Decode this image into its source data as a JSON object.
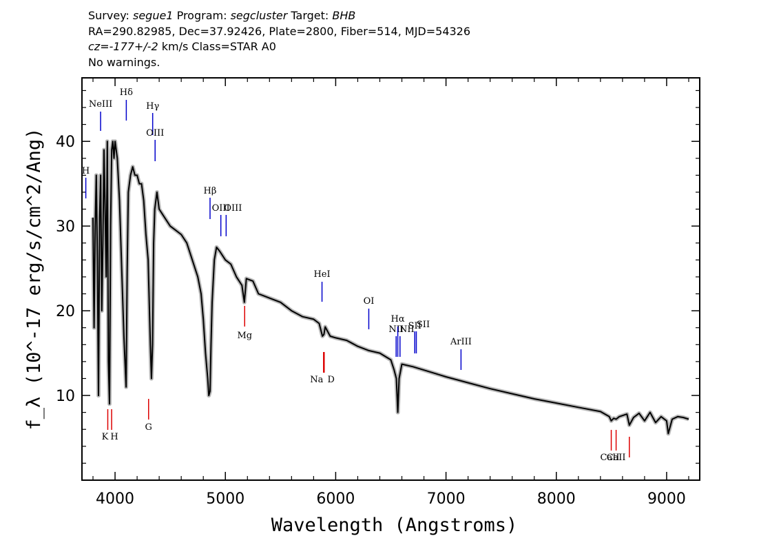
{
  "header": {
    "survey_label": "Survey:",
    "survey": "segue1",
    "program_label": "Program:",
    "program": "segcluster",
    "target_label": "Target:",
    "target": "BHB",
    "line2": "RA=290.82985, Dec=37.92426, Plate=2800, Fiber=514, MJD=54326",
    "cz_label": "cz=",
    "cz_value": "-177+/-2",
    "cz_rest": "km/s Class=STAR A0",
    "warnings": "No warnings."
  },
  "chart_data": {
    "type": "line",
    "xlabel": "Wavelength (Angstroms)",
    "ylabel": "f_λ (10^-17 erg/s/cm^2/Ang)",
    "xlim": [
      3700,
      9300
    ],
    "ylim": [
      0,
      47.5
    ],
    "xticks": [
      4000,
      5000,
      6000,
      7000,
      8000,
      9000
    ],
    "yticks": [
      10,
      20,
      30,
      40
    ],
    "series": [
      {
        "color": "#000000",
        "x": [
          3800,
          3810,
          3820,
          3830,
          3840,
          3850,
          3860,
          3870,
          3880,
          3890,
          3900,
          3910,
          3920,
          3930,
          3940,
          3950,
          3960,
          3970,
          3980,
          3990,
          4000,
          4020,
          4040,
          4060,
          4080,
          4090,
          4100,
          4110,
          4120,
          4140,
          4160,
          4180,
          4200,
          4220,
          4240,
          4260,
          4280,
          4300,
          4320,
          4330,
          4340,
          4350,
          4360,
          4370,
          4380,
          4400,
          4450,
          4500,
          4550,
          4600,
          4650,
          4700,
          4750,
          4780,
          4800,
          4820,
          4840,
          4850,
          4861,
          4870,
          4880,
          4900,
          4920,
          4950,
          5000,
          5050,
          5100,
          5150,
          5172,
          5190,
          5250,
          5300,
          5400,
          5500,
          5600,
          5700,
          5800,
          5850,
          5880,
          5893,
          5905,
          5950,
          6000,
          6100,
          6200,
          6300,
          6400,
          6500,
          6530,
          6550,
          6563,
          6575,
          6600,
          6700,
          6800,
          6900,
          7000,
          7200,
          7400,
          7600,
          7800,
          8000,
          8200,
          8400,
          8480,
          8498,
          8520,
          8542,
          8570,
          8640,
          8662,
          8700,
          8750,
          8800,
          8850,
          8900,
          8950,
          9000,
          9015,
          9050,
          9100,
          9150,
          9200
        ],
        "values": [
          31,
          18,
          30,
          36,
          26,
          10,
          31,
          36,
          20,
          28,
          39,
          32,
          24,
          40,
          14,
          9,
          30,
          39,
          40,
          38,
          40,
          38,
          33,
          25,
          17,
          14,
          11,
          25,
          34,
          36,
          37,
          36,
          36,
          35,
          35,
          33,
          29,
          26,
          16,
          12,
          16,
          28,
          32,
          33,
          34,
          32,
          31,
          30,
          29.5,
          29,
          28,
          26,
          24,
          22,
          19,
          15,
          12,
          10,
          10.5,
          16,
          21,
          26,
          27.5,
          27,
          26,
          25.5,
          24,
          23,
          21,
          23.8,
          23.5,
          22,
          21.5,
          21,
          20,
          19.3,
          19,
          18.5,
          17,
          17.2,
          18.1,
          17,
          16.8,
          16.5,
          15.8,
          15.3,
          15,
          14.2,
          13,
          12,
          8,
          12,
          13.7,
          13.4,
          13,
          12.6,
          12.2,
          11.5,
          10.8,
          10.2,
          9.6,
          9.1,
          8.6,
          8.1,
          7.5,
          7.0,
          7.3,
          7.2,
          7.5,
          7.8,
          6.5,
          7.4,
          7.9,
          7.0,
          8.0,
          6.8,
          7.5,
          7.0,
          5.5,
          7.2,
          7.5,
          7.4,
          7.2
        ]
      }
    ],
    "emission_lines": [
      {
        "label": "H",
        "wavelength": 3735
      },
      {
        "label": "NeIII",
        "wavelength": 3869
      },
      {
        "label": "Hδ",
        "wavelength": 4102
      },
      {
        "label": "Hγ",
        "wavelength": 4341
      },
      {
        "label": "OIII",
        "wavelength": 4363
      },
      {
        "label": "Hβ",
        "wavelength": 4861
      },
      {
        "label": "OIII",
        "wavelength": 4959
      },
      {
        "label": "OIII",
        "wavelength": 5007
      },
      {
        "label": "HeI",
        "wavelength": 5876
      },
      {
        "label": "OI",
        "wavelength": 6300
      },
      {
        "label": "NII",
        "wavelength": 6548
      },
      {
        "label": "Hα",
        "wavelength": 6563
      },
      {
        "label": "NII",
        "wavelength": 6583
      },
      {
        "label": "SII",
        "wavelength": 6717
      },
      {
        "label": "SII",
        "wavelength": 6731
      },
      {
        "label": "ArIII",
        "wavelength": 7136
      }
    ],
    "absorption_lines": [
      {
        "label": "K",
        "wavelength": 3934
      },
      {
        "label": "H",
        "wavelength": 3969
      },
      {
        "label": "G",
        "wavelength": 4304
      },
      {
        "label": "Mg",
        "wavelength": 5175
      },
      {
        "label": "Na",
        "wavelength": 5890
      },
      {
        "label": "D",
        "wavelength": 5896
      },
      {
        "label": "CaII",
        "wavelength": 8498
      },
      {
        "label": "CaII",
        "wavelength": 8542
      },
      {
        "label": "CaII",
        "wavelength": 8662
      }
    ],
    "colors": {
      "spectrum": "#000000",
      "noise": "#b8b8b8",
      "emission": "#0000cc",
      "absorption": "#dd0000"
    },
    "grid": false
  }
}
